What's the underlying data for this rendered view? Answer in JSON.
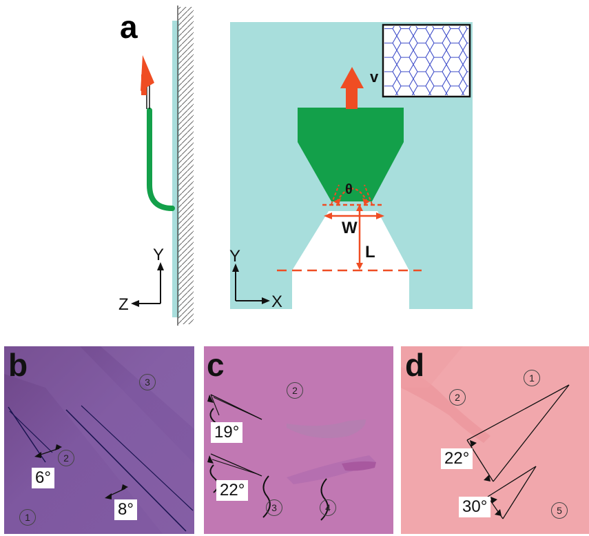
{
  "panel_a": {
    "label": "a",
    "side_axes": {
      "y": "Y",
      "z": "Z"
    },
    "front_axes": {
      "y": "Y",
      "x": "X"
    },
    "velocity": "v",
    "theta": "θ",
    "width": "W",
    "length": "L"
  },
  "panel_b": {
    "label": "b",
    "angles": [
      "6°",
      "8°"
    ],
    "regions": [
      "1",
      "2",
      "3"
    ]
  },
  "panel_c": {
    "label": "c",
    "angles": [
      "19°",
      "22°"
    ],
    "regions": [
      "2",
      "3",
      "4"
    ]
  },
  "panel_d": {
    "label": "d",
    "angles": [
      "22°",
      "30°"
    ],
    "regions": [
      "1",
      "2",
      "5"
    ]
  },
  "colors": {
    "substrate": "#a8dedc",
    "probe": "#13a04a",
    "arrow": "#ef4d23",
    "panel_b_bg": "#7a4f93",
    "panel_c_bg": "#c478b6",
    "panel_d_bg": "#f1a7ac"
  }
}
